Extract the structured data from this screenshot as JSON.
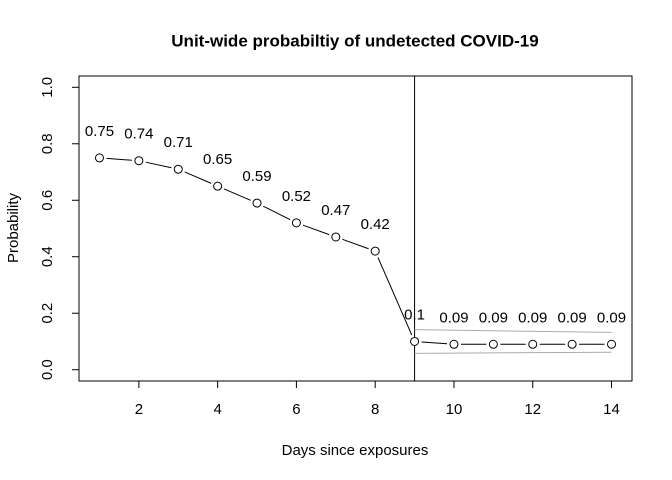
{
  "chart_data": {
    "type": "line",
    "title": "Unit-wide probabiltiy of undetected COVID-19",
    "x_label": "Days since exposures",
    "y_label": "Probability",
    "x": [
      1,
      2,
      3,
      4,
      5,
      6,
      7,
      8,
      9,
      10,
      11,
      12,
      13,
      14
    ],
    "values": [
      0.75,
      0.74,
      0.71,
      0.65,
      0.59,
      0.52,
      0.47,
      0.42,
      0.1,
      0.09,
      0.09,
      0.09,
      0.09,
      0.09
    ],
    "color": "#000000",
    "bands": [
      {
        "x": [
          9,
          14
        ],
        "values": [
          0.142,
          0.132
        ],
        "color": "#aaaaaa"
      },
      {
        "x": [
          9,
          14
        ],
        "values": [
          0.058,
          0.062
        ],
        "color": "#aaaaaa"
      }
    ],
    "vline": 9,
    "xlim": [
      0.48,
      14.52
    ],
    "ylim": [
      -0.04,
      1.04
    ],
    "xticks": [
      2,
      4,
      6,
      8,
      10,
      12,
      14
    ],
    "yticks": [
      {
        "value": 0,
        "label": "0.0"
      },
      {
        "value": 0.2,
        "label": "0.2"
      },
      {
        "value": 0.4,
        "label": "0.4"
      },
      {
        "value": 0.6,
        "label": "0.6"
      },
      {
        "value": 0.8,
        "label": "0.8"
      },
      {
        "value": 1,
        "label": "1.0"
      }
    ]
  }
}
